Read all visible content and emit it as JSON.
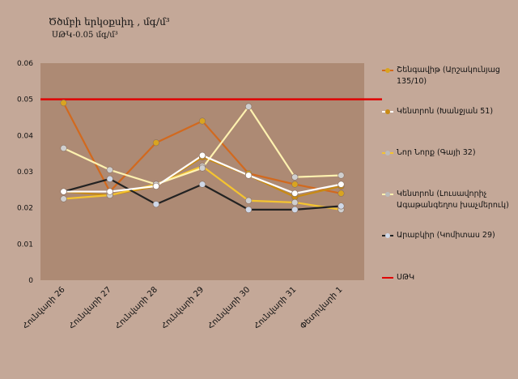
{
  "title": "Ծծմբի երկօքսիդ , մգ/մ³",
  "subtitle": "ՍԹԿ-0.05 մգ/մ³",
  "chart_data": {
    "type": "line",
    "categories": [
      "Հունվարի 26",
      "Հունվարի 27",
      "Հունվարի 28",
      "Հունվարի 29",
      "Հունվարի 30",
      "Հունվարի 31",
      "Փետրվարի 1"
    ],
    "ylim": [
      0,
      0.06
    ],
    "yticks": [
      "0",
      "0.01",
      "0.02",
      "0.03",
      "0.04",
      "0.05",
      "0.06"
    ],
    "grid": false,
    "legend_position": "right",
    "plot_background": "#ad8a74",
    "series": [
      {
        "name": "Շենգավիթ (Արշակունյաց 135/10)",
        "color": "#d2691e",
        "values": [
          0.049,
          0.0245,
          0.038,
          0.044,
          0.0295,
          0.0265,
          0.024
        ]
      },
      {
        "name": "Կենտրոն (Խանջյան 51)",
        "color": "#c88a14",
        "values": [
          0.0245,
          0.0235,
          0.026,
          0.034,
          0.029,
          0.023,
          0.026
        ]
      },
      {
        "name": "Նոր Նորք (Գայի 32)",
        "color": "#f4c430",
        "values": [
          0.0225,
          0.0235,
          0.0265,
          0.0315,
          0.022,
          0.0215,
          0.0195
        ]
      },
      {
        "name": "Կենտրոն (Լուսավորիչ Ագաթանգեղոս խաչմերուկ)",
        "color": "#fff2b0",
        "values": [
          0.0365,
          0.0305,
          0.0265,
          0.031,
          0.048,
          0.0285,
          0.029
        ]
      },
      {
        "name": "Արաբկիր (Կոմիտաս 29)",
        "color": "#222222",
        "values": [
          0.0245,
          0.028,
          0.021,
          0.0265,
          0.0195,
          0.0195,
          0.0205
        ]
      },
      {
        "name": "",
        "color": "#ffffff",
        "values": [
          0.0245,
          0.0245,
          0.026,
          0.0345,
          0.029,
          0.024,
          0.0265
        ]
      }
    ],
    "threshold": {
      "name": "ՍԹԿ",
      "value": 0.05,
      "color": "#e00000"
    }
  },
  "legend": [
    {
      "label": "Շենգավիթ (Արշակունյաց 135/10)",
      "color": "#d2691e",
      "dot": "#d9a420"
    },
    {
      "label": "Կենտրոն (Խանջյան 51)",
      "color": "#ffffff",
      "dot": "#c88a14"
    },
    {
      "label": "Նոր Նորք (Գայի 32)",
      "color": "#f4c430",
      "dot": "#bbbbbb"
    },
    {
      "label": "Կենտրոն (Լուսավորիչ Ագաթանգեղոս խաչմերուկ)",
      "color": "#fff2b0",
      "dot": "#bbbbbb"
    },
    {
      "label": "Արաբկիր (Կոմիտաս 29)",
      "color": "#222222",
      "dot": "#cfd8e8"
    },
    {
      "label": "ՍԹԿ",
      "color": "#e00000",
      "dot": ""
    }
  ]
}
